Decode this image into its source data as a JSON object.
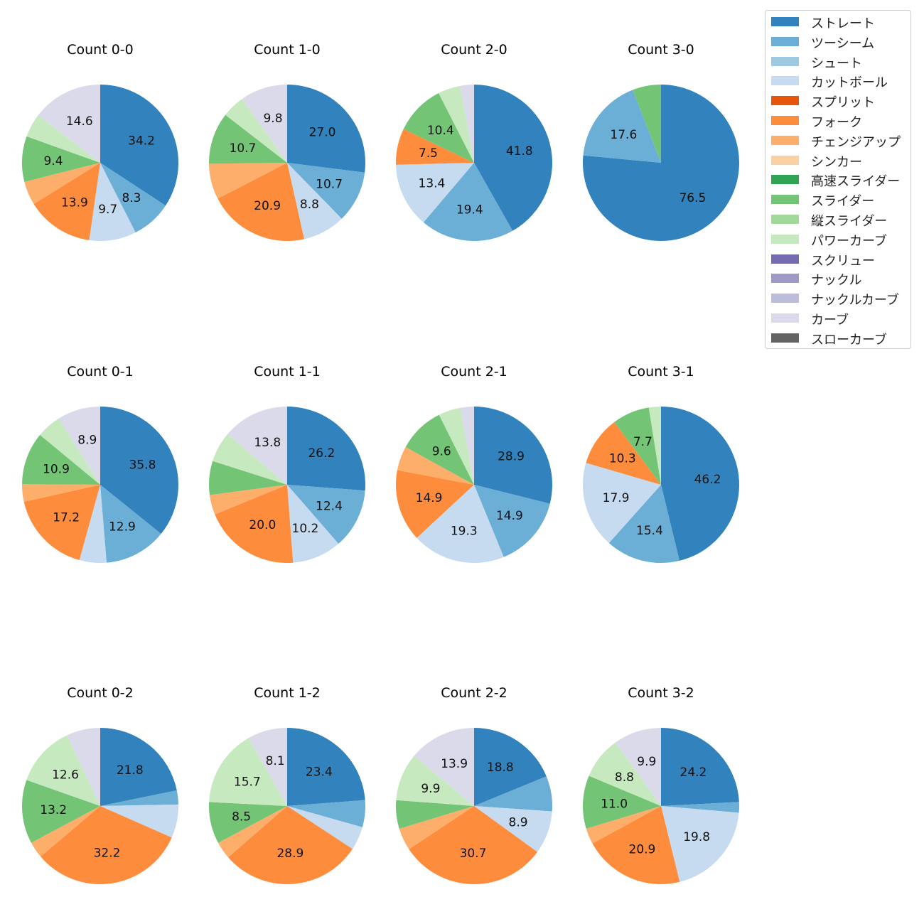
{
  "chart_data": {
    "type": "pie",
    "categories": [
      "ストレート",
      "ツーシーム",
      "シュート",
      "カットボール",
      "スプリット",
      "フォーク",
      "チェンジアップ",
      "シンカー",
      "高速スライダー",
      "スライダー",
      "縦スライダー",
      "パワーカーブ",
      "スクリュー",
      "ナックル",
      "ナックルカーブ",
      "カーブ",
      "スローカーブ"
    ],
    "colors": [
      "#3182bd",
      "#6baed6",
      "#9ecae1",
      "#c6dbef",
      "#e6550d",
      "#fd8d3c",
      "#fdae6b",
      "#fdd0a2",
      "#31a354",
      "#74c476",
      "#a1d99b",
      "#c7e9c0",
      "#756bb1",
      "#9e9ac8",
      "#bcbddc",
      "#dadaeb",
      "#636363"
    ],
    "label_threshold": 7.5,
    "charts": [
      {
        "title": "Count 0-0",
        "values": [
          34.2,
          8.3,
          0,
          9.7,
          0,
          13.9,
          4.9,
          0,
          0,
          9.4,
          0,
          4.9,
          0,
          0,
          0,
          14.6,
          0
        ]
      },
      {
        "title": "Count 1-0",
        "values": [
          27.0,
          10.7,
          0,
          8.8,
          0,
          20.9,
          7.4,
          0,
          0,
          10.7,
          0,
          4.7,
          0,
          0,
          0,
          9.8,
          0
        ]
      },
      {
        "title": "Count 2-0",
        "values": [
          41.8,
          19.4,
          0,
          13.4,
          0,
          7.5,
          0,
          0,
          0,
          10.4,
          0,
          4.6,
          0,
          0,
          0,
          2.9,
          0
        ]
      },
      {
        "title": "Count 3-0",
        "values": [
          76.5,
          17.6,
          0,
          0,
          0,
          0,
          0,
          0,
          0,
          5.9,
          0,
          0,
          0,
          0,
          0,
          0,
          0
        ]
      },
      {
        "title": "Count 0-1",
        "values": [
          35.8,
          12.9,
          0,
          5.6,
          0,
          17.2,
          3.6,
          0,
          0,
          10.9,
          0,
          5.1,
          0,
          0,
          0,
          8.9,
          0
        ]
      },
      {
        "title": "Count 1-1",
        "values": [
          26.2,
          12.4,
          0,
          10.2,
          0,
          20.0,
          4.1,
          0,
          0,
          7.0,
          0,
          6.3,
          0,
          0,
          0,
          13.8,
          0
        ]
      },
      {
        "title": "Count 2-1",
        "values": [
          28.9,
          14.9,
          0,
          19.3,
          0,
          14.9,
          5.0,
          0,
          0,
          9.6,
          0,
          4.6,
          0,
          0,
          0,
          2.8,
          0
        ]
      },
      {
        "title": "Count 3-1",
        "values": [
          46.2,
          15.4,
          0,
          17.9,
          0,
          10.3,
          0,
          0,
          0,
          7.7,
          0,
          2.5,
          0,
          0,
          0,
          0,
          0
        ]
      },
      {
        "title": "Count 0-2",
        "values": [
          21.8,
          2.9,
          0,
          6.9,
          0,
          32.2,
          3.4,
          0,
          0,
          13.2,
          0,
          12.6,
          0,
          0,
          0,
          7.0,
          0
        ]
      },
      {
        "title": "Count 1-2",
        "values": [
          23.4,
          5.5,
          0,
          4.8,
          0,
          28.9,
          3.5,
          0,
          0,
          8.5,
          0,
          15.7,
          0,
          0,
          0,
          8.1,
          0
        ]
      },
      {
        "title": "Count 2-2",
        "values": [
          18.8,
          7.3,
          0,
          8.9,
          0,
          30.7,
          4.6,
          0,
          0,
          5.9,
          0,
          9.9,
          0,
          0,
          0,
          13.9,
          0
        ]
      },
      {
        "title": "Count 3-2",
        "values": [
          24.2,
          2.2,
          0,
          19.8,
          0,
          20.9,
          3.3,
          0,
          0,
          11.0,
          0,
          8.8,
          0,
          0,
          0,
          9.9,
          0
        ]
      }
    ]
  }
}
